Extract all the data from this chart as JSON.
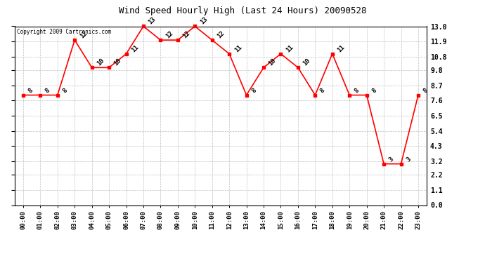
{
  "title": "Wind Speed Hourly High (Last 24 Hours) 20090528",
  "copyright": "Copyright 2009 Cartronics.com",
  "hours": [
    0,
    1,
    2,
    3,
    4,
    5,
    6,
    7,
    8,
    9,
    10,
    11,
    12,
    13,
    14,
    15,
    16,
    17,
    18,
    19,
    20,
    21,
    22,
    23
  ],
  "hour_labels": [
    "00:00",
    "01:00",
    "02:00",
    "03:00",
    "04:00",
    "05:00",
    "06:00",
    "07:00",
    "08:00",
    "09:00",
    "10:00",
    "11:00",
    "12:00",
    "13:00",
    "14:00",
    "15:00",
    "16:00",
    "17:00",
    "18:00",
    "19:00",
    "20:00",
    "21:00",
    "22:00",
    "23:00"
  ],
  "values": [
    8,
    8,
    8,
    12,
    10,
    10,
    11,
    13,
    12,
    12,
    13,
    12,
    11,
    8,
    10,
    11,
    10,
    8,
    11,
    8,
    8,
    3,
    3,
    8
  ],
  "line_color": "#ff0000",
  "marker_color": "#ff0000",
  "bg_color": "#ffffff",
  "grid_color": "#c0c0c0",
  "title_color": "#000000",
  "yticks": [
    0.0,
    1.1,
    2.2,
    3.2,
    4.3,
    5.4,
    6.5,
    7.6,
    8.7,
    9.8,
    10.8,
    11.9,
    13.0
  ],
  "ytick_labels": [
    "0.0",
    "1.1",
    "2.2",
    "3.2",
    "4.3",
    "5.4",
    "6.5",
    "7.6",
    "8.7",
    "9.8",
    "10.8",
    "11.9",
    "13.0"
  ],
  "ylim": [
    0.0,
    13.0
  ],
  "marker_size": 3,
  "line_width": 1.2,
  "fig_width": 6.9,
  "fig_height": 3.75,
  "dpi": 100
}
